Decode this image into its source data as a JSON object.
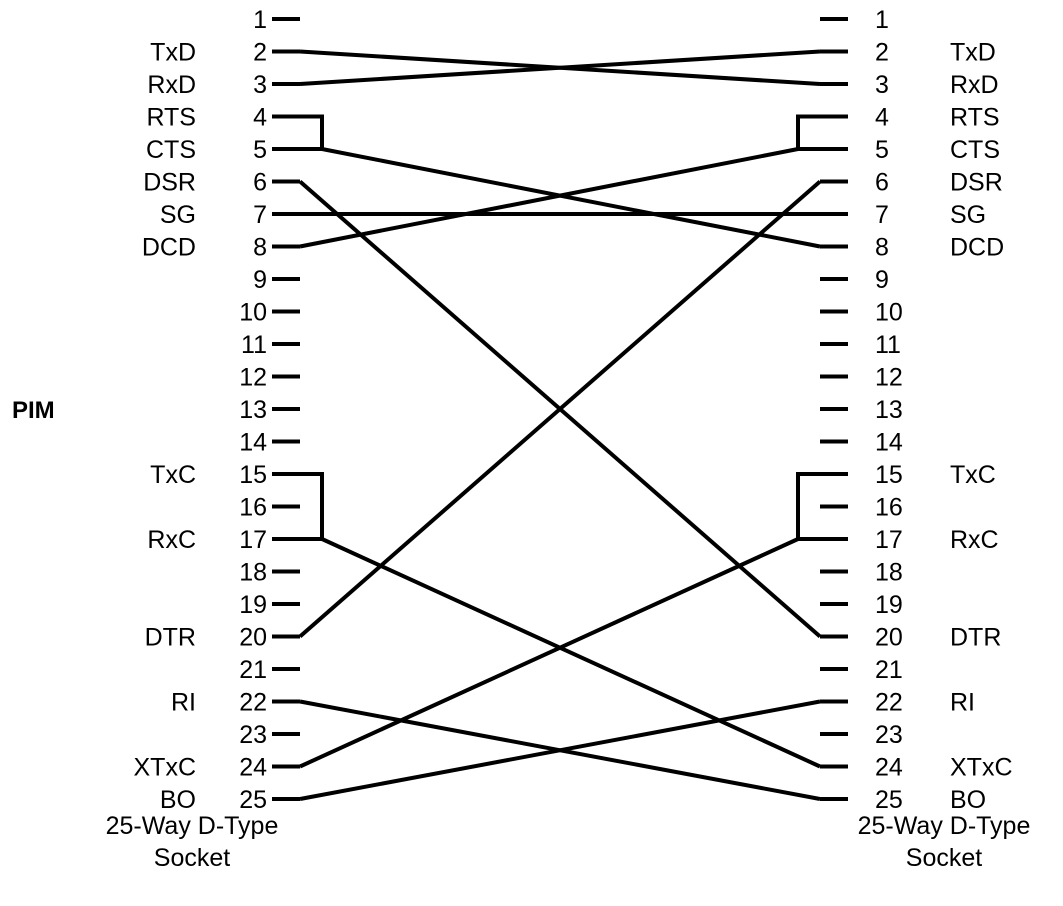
{
  "pim_label": "PIM",
  "left_caption": [
    "25-Way D-Type",
    "Socket"
  ],
  "right_caption": [
    "25-Way D-Type",
    "Socket"
  ],
  "pins": [
    "1",
    "2",
    "3",
    "4",
    "5",
    "6",
    "7",
    "8",
    "9",
    "10",
    "11",
    "12",
    "13",
    "14",
    "15",
    "16",
    "17",
    "18",
    "19",
    "20",
    "21",
    "22",
    "23",
    "24",
    "25"
  ],
  "left_signals": {
    "2": "TxD",
    "3": "RxD",
    "4": "RTS",
    "5": "CTS",
    "6": "DSR",
    "7": "SG",
    "8": "DCD",
    "15": "TxC",
    "17": "RxC",
    "20": "DTR",
    "22": "RI",
    "24": "XTxC",
    "25": "BO"
  },
  "right_signals": {
    "2": "TxD",
    "3": "RxD",
    "4": "RTS",
    "5": "CTS",
    "6": "DSR",
    "7": "SG",
    "8": "DCD",
    "15": "TxC",
    "17": "RxC",
    "20": "DTR",
    "22": "RI",
    "24": "XTxC",
    "25": "BO"
  },
  "connections": [
    {
      "from": "2",
      "to": "3"
    },
    {
      "from": "3",
      "to": "2"
    },
    {
      "from": [
        "4",
        "5"
      ],
      "to": "8"
    },
    {
      "from": "8",
      "to": [
        "4",
        "5"
      ]
    },
    {
      "from": "6",
      "to": "20"
    },
    {
      "from": "7",
      "to": "7"
    },
    {
      "from": "20",
      "to": "6"
    },
    {
      "from": [
        "15",
        "17"
      ],
      "to": "24"
    },
    {
      "from": "24",
      "to": [
        "15",
        "17"
      ]
    },
    {
      "from": "22",
      "to": "25"
    },
    {
      "from": "25",
      "to": "22"
    }
  ]
}
